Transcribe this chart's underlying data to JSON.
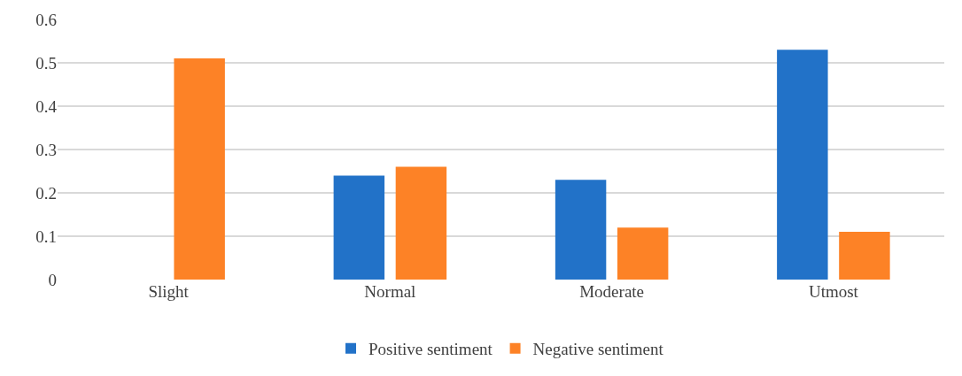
{
  "chart_data": {
    "type": "bar",
    "categories": [
      "Slight",
      "Normal",
      "Moderate",
      "Utmost"
    ],
    "series": [
      {
        "name": "Positive sentiment",
        "color": "#2272c8",
        "values": [
          0,
          0.24,
          0.23,
          0.53
        ]
      },
      {
        "name": "Negative sentiment",
        "color": "#fd8226",
        "values": [
          0.51,
          0.26,
          0.12,
          0.11
        ]
      }
    ],
    "ylim": [
      0,
      0.6
    ],
    "yticks": [
      {
        "value": 0,
        "label": "0"
      },
      0.1,
      0.2,
      0.3,
      0.4,
      0.5,
      0.6
    ],
    "grid": "y",
    "legend": "bottom"
  }
}
